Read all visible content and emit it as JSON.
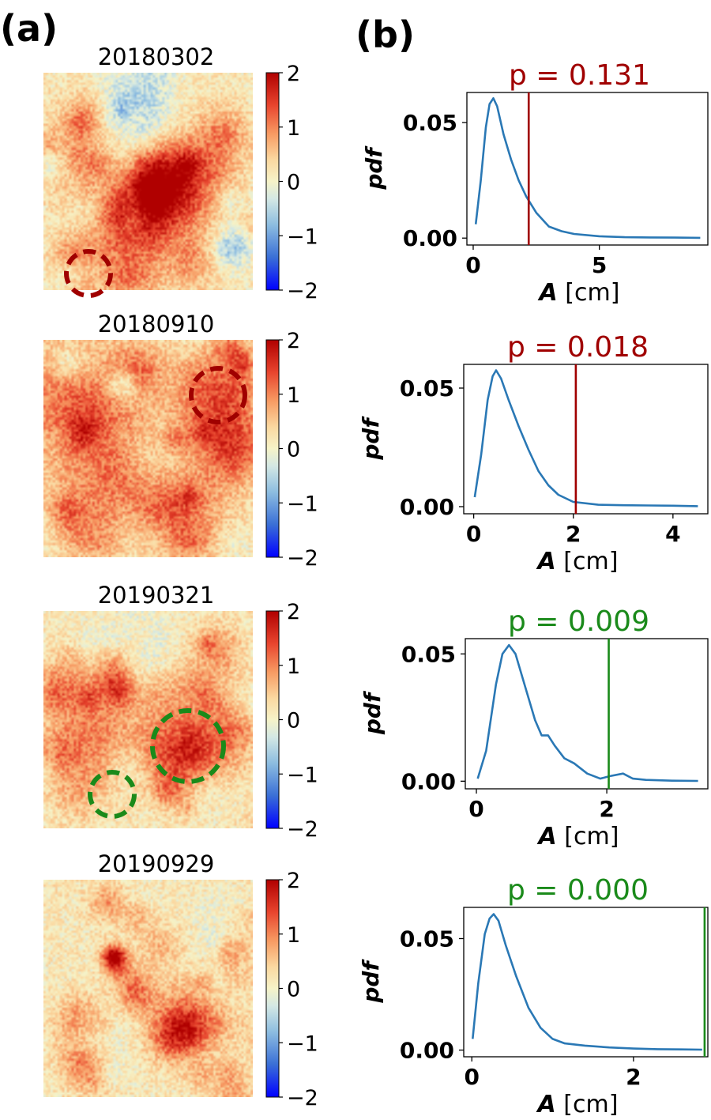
{
  "panel_labels": {
    "a": "(a)",
    "b": "(b)"
  },
  "colors": {
    "red": "#a00000",
    "green": "#1a8a1a",
    "curve": "#2a78b5"
  },
  "colorbar": {
    "ticks": [
      "2",
      "1",
      "0",
      "−1",
      "−2"
    ],
    "colormap": "RdYlBu_r",
    "range": [
      -2,
      2
    ]
  },
  "maps": [
    {
      "date": "20180302",
      "circle_color": "red",
      "hotspots": [
        [
          0.44,
          0.58,
          0.18,
          1.2
        ],
        [
          0.62,
          0.52,
          0.15,
          1.1
        ],
        [
          0.22,
          0.2,
          0.1,
          0.8
        ],
        [
          0.4,
          0.92,
          0.1,
          0.9
        ],
        [
          0.85,
          0.28,
          0.09,
          0.8
        ],
        [
          0.7,
          0.88,
          0.08,
          0.6
        ]
      ],
      "coldspots": [
        [
          0.4,
          0.2,
          0.13,
          -1.1
        ],
        [
          0.4,
          0.65,
          0.06,
          -0.9
        ],
        [
          0.9,
          0.8,
          0.06,
          -0.9
        ],
        [
          0.18,
          0.6,
          0.07,
          -0.6
        ]
      ]
    },
    {
      "date": "20180910",
      "circle_color": "red",
      "hotspots": [
        [
          0.82,
          0.25,
          0.14,
          1.2
        ],
        [
          0.9,
          0.5,
          0.12,
          1.1
        ],
        [
          0.18,
          0.3,
          0.22,
          1.1
        ],
        [
          0.66,
          0.78,
          0.14,
          1.0
        ],
        [
          0.22,
          0.8,
          0.13,
          0.7
        ],
        [
          0.38,
          0.6,
          0.1,
          0.6
        ]
      ],
      "coldspots": [
        [
          0.38,
          0.2,
          0.05,
          -0.9
        ],
        [
          0.1,
          0.1,
          0.05,
          -0.5
        ],
        [
          0.45,
          0.55,
          0.08,
          -0.3
        ]
      ]
    },
    {
      "date": "20190321",
      "circle_color": "green",
      "hotspots": [
        [
          0.68,
          0.62,
          0.13,
          1.6
        ],
        [
          0.2,
          0.55,
          0.18,
          0.9
        ],
        [
          0.36,
          0.35,
          0.06,
          1.0
        ],
        [
          0.85,
          0.2,
          0.1,
          0.6
        ],
        [
          0.92,
          0.55,
          0.07,
          0.7
        ],
        [
          0.15,
          0.85,
          0.08,
          0.4
        ]
      ],
      "coldspots": [
        [
          0.5,
          0.15,
          0.08,
          -0.3
        ],
        [
          0.38,
          0.7,
          0.06,
          -0.3
        ]
      ]
    },
    {
      "date": "20190929",
      "circle_color": "green",
      "hotspots": [
        [
          0.33,
          0.35,
          0.04,
          2.0
        ],
        [
          0.67,
          0.67,
          0.1,
          1.7
        ],
        [
          0.3,
          0.1,
          0.06,
          0.7
        ],
        [
          0.55,
          0.3,
          0.07,
          0.5
        ],
        [
          0.2,
          0.88,
          0.07,
          0.6
        ],
        [
          0.85,
          0.92,
          0.06,
          0.4
        ]
      ],
      "coldspots": [
        [
          0.8,
          0.15,
          0.06,
          -0.2
        ]
      ]
    }
  ],
  "chart_data": [
    {
      "type": "line",
      "title": "p = 0.131",
      "title_color": "red",
      "ylabel": "pdf",
      "xlabel_var": "A",
      "xlabel_unit": " [cm]",
      "xlim": [
        -0.25,
        9.3
      ],
      "ylim": [
        -0.003,
        0.063
      ],
      "xticks": [
        0,
        5
      ],
      "yticks": [
        0.0,
        0.05
      ],
      "ytick_labels": [
        "0.00",
        "0.05"
      ],
      "vline": 2.2,
      "x": [
        0.1,
        0.3,
        0.5,
        0.65,
        0.8,
        0.95,
        1.2,
        1.5,
        1.8,
        2.1,
        2.5,
        3.0,
        3.5,
        4.0,
        5.0,
        6.0,
        7.0,
        8.0,
        9.0
      ],
      "y": [
        0.006,
        0.025,
        0.048,
        0.058,
        0.0605,
        0.057,
        0.045,
        0.034,
        0.025,
        0.018,
        0.011,
        0.005,
        0.003,
        0.0018,
        0.0008,
        0.0004,
        0.0003,
        0.0002,
        0.0001
      ]
    },
    {
      "type": "line",
      "title": "p = 0.018",
      "title_color": "red",
      "ylabel": "pdf",
      "xlabel_var": "A",
      "xlabel_unit": " [cm]",
      "xlim": [
        -0.2,
        4.7
      ],
      "ylim": [
        -0.003,
        0.06
      ],
      "xticks": [
        0,
        2,
        4
      ],
      "yticks": [
        0.0,
        0.05
      ],
      "ytick_labels": [
        "0.00",
        "0.05"
      ],
      "vline": 2.05,
      "x": [
        0.02,
        0.15,
        0.28,
        0.38,
        0.45,
        0.55,
        0.7,
        0.9,
        1.1,
        1.3,
        1.5,
        1.7,
        2.0,
        2.5,
        3.0,
        3.5,
        4.0,
        4.5
      ],
      "y": [
        0.004,
        0.022,
        0.045,
        0.055,
        0.0575,
        0.054,
        0.045,
        0.034,
        0.024,
        0.015,
        0.009,
        0.005,
        0.002,
        0.0008,
        0.0006,
        0.0005,
        0.0004,
        0.0002
      ]
    },
    {
      "type": "line",
      "title": "p = 0.009",
      "title_color": "green",
      "ylabel": "pdf",
      "xlabel_var": "A",
      "xlabel_unit": " [cm]",
      "xlim": [
        -0.17,
        3.55
      ],
      "ylim": [
        -0.003,
        0.056
      ],
      "xticks": [
        0,
        2
      ],
      "yticks": [
        0.0,
        0.05
      ],
      "ytick_labels": [
        "0.00",
        "0.05"
      ],
      "vline": 2.03,
      "x": [
        0.02,
        0.15,
        0.3,
        0.4,
        0.5,
        0.6,
        0.75,
        0.9,
        1.0,
        1.1,
        1.2,
        1.35,
        1.5,
        1.7,
        1.9,
        2.05,
        2.25,
        2.4,
        2.6,
        3.0,
        3.4
      ],
      "y": [
        0.001,
        0.012,
        0.038,
        0.05,
        0.0535,
        0.05,
        0.037,
        0.024,
        0.018,
        0.018,
        0.014,
        0.009,
        0.007,
        0.003,
        0.001,
        0.002,
        0.003,
        0.001,
        0.0005,
        0.0002,
        0.0001
      ]
    },
    {
      "type": "line",
      "title": "p = 0.000",
      "title_color": "green",
      "ylabel": "pdf",
      "xlabel_var": "A",
      "xlabel_unit": " [cm]",
      "xlim": [
        -0.1,
        2.92
      ],
      "ylim": [
        -0.003,
        0.064
      ],
      "xticks": [
        0,
        2
      ],
      "yticks": [
        0.0,
        0.05
      ],
      "ytick_labels": [
        "0.00",
        "0.05"
      ],
      "vline": 2.88,
      "x": [
        0.01,
        0.08,
        0.16,
        0.22,
        0.27,
        0.33,
        0.42,
        0.55,
        0.7,
        0.85,
        1.0,
        1.15,
        1.4,
        1.7,
        2.0,
        2.3,
        2.6,
        2.85
      ],
      "y": [
        0.005,
        0.03,
        0.052,
        0.059,
        0.061,
        0.058,
        0.047,
        0.033,
        0.019,
        0.01,
        0.005,
        0.003,
        0.002,
        0.0012,
        0.0007,
        0.0004,
        0.0003,
        0.0002
      ]
    }
  ]
}
